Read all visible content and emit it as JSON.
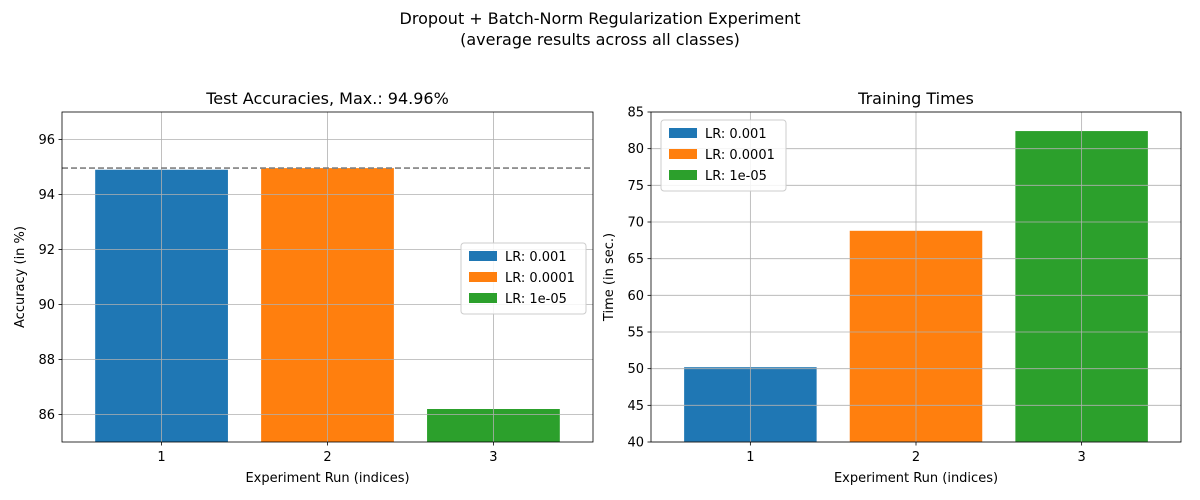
{
  "figure": {
    "title_line1": "Dropout + Batch-Norm Regularization Experiment",
    "title_line2": "(average results across all classes)"
  },
  "chart_data": [
    {
      "type": "bar",
      "title": "Test Accuracies, Max.: 94.96%",
      "xlabel": "Experiment Run (indices)",
      "ylabel": "Accuracy (in %)",
      "categories": [
        "1",
        "2",
        "3"
      ],
      "series": [
        {
          "name": "LR: 0.001",
          "color": "#1f77b4",
          "values": [
            94.9,
            null,
            null
          ]
        },
        {
          "name": "LR: 0.0001",
          "color": "#ff7f0e",
          "values": [
            null,
            94.96,
            null
          ]
        },
        {
          "name": "LR: 1e-05",
          "color": "#2ca02c",
          "values": [
            null,
            null,
            86.2
          ]
        }
      ],
      "ylim": [
        85,
        97
      ],
      "yticks": [
        86,
        88,
        90,
        92,
        94,
        96
      ],
      "reference_line": {
        "value": 94.96,
        "style": "dashed",
        "color": "#808080"
      },
      "grid": true,
      "legend_position": "center-right"
    },
    {
      "type": "bar",
      "title": "Training Times",
      "xlabel": "Experiment Run (indices)",
      "ylabel": "Time (in sec.)",
      "categories": [
        "1",
        "2",
        "3"
      ],
      "series": [
        {
          "name": "LR: 0.001",
          "color": "#1f77b4",
          "values": [
            50.2,
            null,
            null
          ]
        },
        {
          "name": "LR: 0.0001",
          "color": "#ff7f0e",
          "values": [
            null,
            68.8,
            null
          ]
        },
        {
          "name": "LR: 1e-05",
          "color": "#2ca02c",
          "values": [
            null,
            null,
            82.4
          ]
        }
      ],
      "ylim": [
        40,
        85
      ],
      "yticks": [
        40,
        45,
        50,
        55,
        60,
        65,
        70,
        75,
        80,
        85
      ],
      "grid": true,
      "legend_position": "top-left"
    }
  ]
}
